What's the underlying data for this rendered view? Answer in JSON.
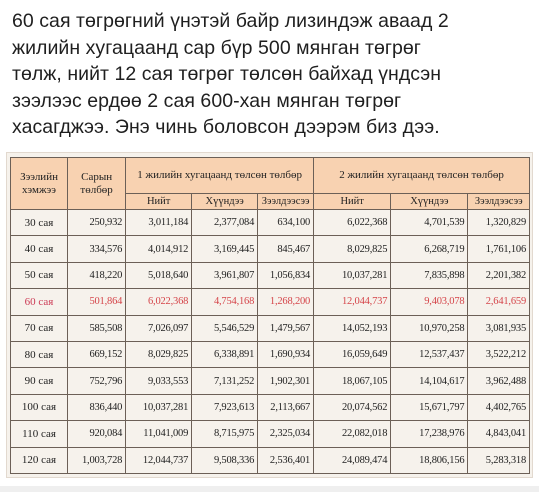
{
  "post": {
    "text": "60 сая төгрөгний үнэтэй байр лизиндэж аваад 2\nжилийн хугацаанд сар бүр 500 мянган төгрөг\nтөлж, нийт 12 сая төгрөг төлсөн байхад үндсэн\nзээлээс ердөө 2 сая 600-хан мянган төгрөг\nхасагджээ. Энэ чинь боловсон дээрэм биз дээ."
  },
  "table": {
    "col_loan": "Зээлийн хэмжээ",
    "col_monthly": "Сарын төлбөр",
    "group1": "1 жилийн хугацаанд төлсөн төлбөр",
    "group2": "2 жилийн хугацаанд төлсөн төлбөр",
    "sub_total": "Нийт",
    "sub_interest": "Хүүндээ",
    "sub_principal": "Зээлдээсээ",
    "highlight_color": "#d5454a",
    "header_color": "#f8d2b1",
    "rows": [
      {
        "loan": "30 сая",
        "monthly": "250,932",
        "y1_total": "3,011,184",
        "y1_interest": "2,377,084",
        "y1_principal": "634,100",
        "y2_total": "6,022,368",
        "y2_interest": "4,701,539",
        "y2_principal": "1,320,829"
      },
      {
        "loan": "40 сая",
        "monthly": "334,576",
        "y1_total": "4,014,912",
        "y1_interest": "3,169,445",
        "y1_principal": "845,467",
        "y2_total": "8,029,825",
        "y2_interest": "6,268,719",
        "y2_principal": "1,761,106"
      },
      {
        "loan": "50 сая",
        "monthly": "418,220",
        "y1_total": "5,018,640",
        "y1_interest": "3,961,807",
        "y1_principal": "1,056,834",
        "y2_total": "10,037,281",
        "y2_interest": "7,835,898",
        "y2_principal": "2,201,382"
      },
      {
        "loan": "60 сая",
        "monthly": "501,864",
        "y1_total": "6,022,368",
        "y1_interest": "4,754,168",
        "y1_principal": "1,268,200",
        "y2_total": "12,044,737",
        "y2_interest": "9,403,078",
        "y2_principal": "2,641,659"
      },
      {
        "loan": "70 сая",
        "monthly": "585,508",
        "y1_total": "7,026,097",
        "y1_interest": "5,546,529",
        "y1_principal": "1,479,567",
        "y2_total": "14,052,193",
        "y2_interest": "10,970,258",
        "y2_principal": "3,081,935"
      },
      {
        "loan": "80 сая",
        "monthly": "669,152",
        "y1_total": "8,029,825",
        "y1_interest": "6,338,891",
        "y1_principal": "1,690,934",
        "y2_total": "16,059,649",
        "y2_interest": "12,537,437",
        "y2_principal": "3,522,212"
      },
      {
        "loan": "90 сая",
        "monthly": "752,796",
        "y1_total": "9,033,553",
        "y1_interest": "7,131,252",
        "y1_principal": "1,902,301",
        "y2_total": "18,067,105",
        "y2_interest": "14,104,617",
        "y2_principal": "3,962,488"
      },
      {
        "loan": "100 сая",
        "monthly": "836,440",
        "y1_total": "10,037,281",
        "y1_interest": "7,923,613",
        "y1_principal": "2,113,667",
        "y2_total": "20,074,562",
        "y2_interest": "15,671,797",
        "y2_principal": "4,402,765"
      },
      {
        "loan": "110 сая",
        "monthly": "920,084",
        "y1_total": "11,041,009",
        "y1_interest": "8,715,975",
        "y1_principal": "2,325,034",
        "y2_total": "22,082,018",
        "y2_interest": "17,238,976",
        "y2_principal": "4,843,041"
      },
      {
        "loan": "120 сая",
        "monthly": "1,003,728",
        "y1_total": "12,044,737",
        "y1_interest": "9,508,336",
        "y1_principal": "2,536,401",
        "y2_total": "24,089,474",
        "y2_interest": "18,806,156",
        "y2_principal": "5,283,318"
      }
    ],
    "highlight_row": 3
  }
}
